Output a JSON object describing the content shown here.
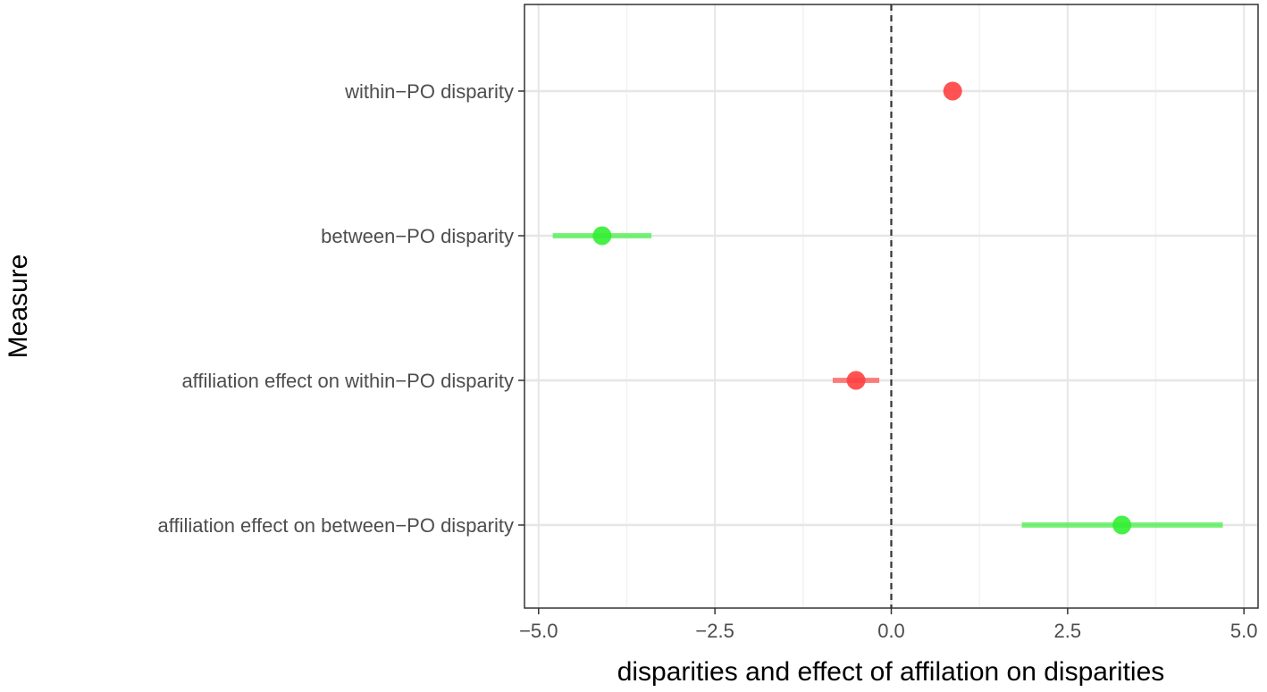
{
  "chart_data": {
    "type": "scatter",
    "subtype": "point-range",
    "orientation": "horizontal",
    "xlabel": "disparities and effect of affilation on disparities",
    "ylabel": "Measure",
    "xlim": [
      -5.2,
      5.2
    ],
    "x_ticks": [
      -5.0,
      -2.5,
      0.0,
      2.5,
      5.0
    ],
    "x_tick_labels": [
      "−5.0",
      "−2.5",
      "0.0",
      "2.5",
      "5.0"
    ],
    "reference_line": {
      "x": 0,
      "style": "dashed"
    },
    "grid": true,
    "points": [
      {
        "label": "within−PO disparity",
        "value": 0.87,
        "low": 0.87,
        "high": 0.87,
        "color": "#ff4040"
      },
      {
        "label": "between−PO disparity",
        "value": -4.1,
        "low": -4.8,
        "high": -3.4,
        "color": "#33ee33"
      },
      {
        "label": "affiliation effect on within−PO disparity",
        "value": -0.5,
        "low": -0.83,
        "high": -0.17,
        "color": "#ff4040"
      },
      {
        "label": "affiliation effect on between−PO disparity",
        "value": 3.27,
        "low": 1.85,
        "high": 4.7,
        "color": "#33ee33"
      }
    ]
  }
}
